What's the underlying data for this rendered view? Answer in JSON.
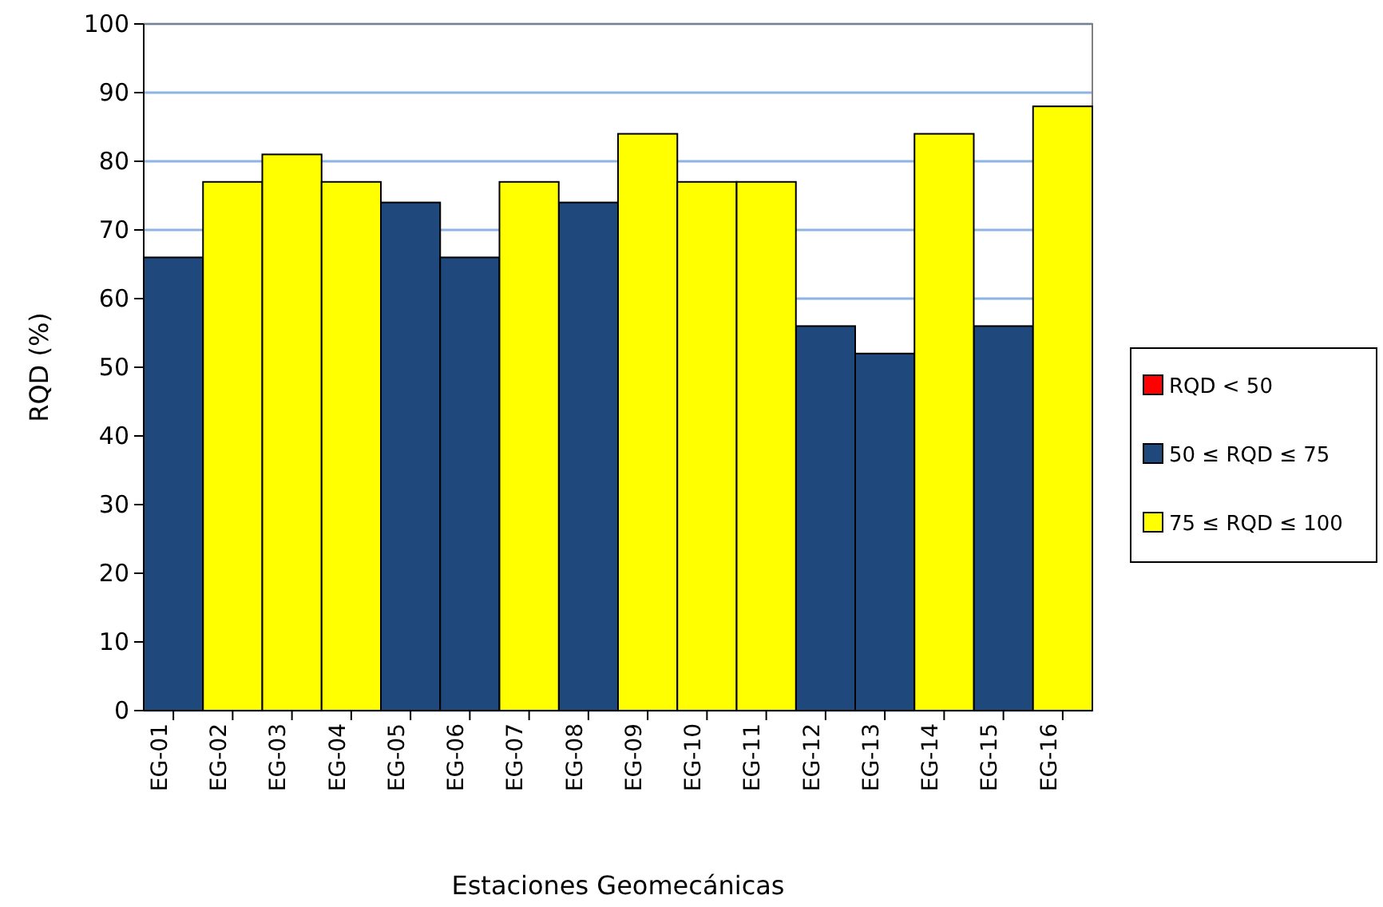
{
  "chart_data": {
    "type": "bar",
    "xlabel": "Estaciones Geomecánicas",
    "ylabel": "RQD (%)",
    "categories": [
      "EG-01",
      "EG-02",
      "EG-03",
      "EG-04",
      "EG-05",
      "EG-06",
      "EG-07",
      "EG-08",
      "EG-09",
      "EG-10",
      "EG-11",
      "EG-12",
      "EG-13",
      "EG-14",
      "EG-15",
      "EG-16"
    ],
    "series": [
      {
        "name": "RQD < 50",
        "color": "#ff0000",
        "values": [
          null,
          null,
          null,
          null,
          null,
          null,
          null,
          null,
          null,
          null,
          null,
          null,
          null,
          null,
          null,
          null
        ]
      },
      {
        "name": "50 ≤ RQD ≤ 75",
        "color": "#1f497d",
        "values": [
          66,
          null,
          null,
          null,
          74,
          66,
          null,
          74,
          null,
          null,
          null,
          56,
          52,
          null,
          56,
          null
        ]
      },
      {
        "name": "75 ≤ RQD ≤ 100",
        "color": "#ffff00",
        "values": [
          null,
          77,
          81,
          77,
          null,
          null,
          77,
          null,
          84,
          77,
          77,
          null,
          null,
          84,
          null,
          88
        ]
      }
    ],
    "ylim": [
      0,
      100
    ],
    "yticks": [
      0,
      10,
      20,
      30,
      40,
      50,
      60,
      70,
      80,
      90,
      100
    ],
    "grid": "y",
    "legend": "right"
  }
}
